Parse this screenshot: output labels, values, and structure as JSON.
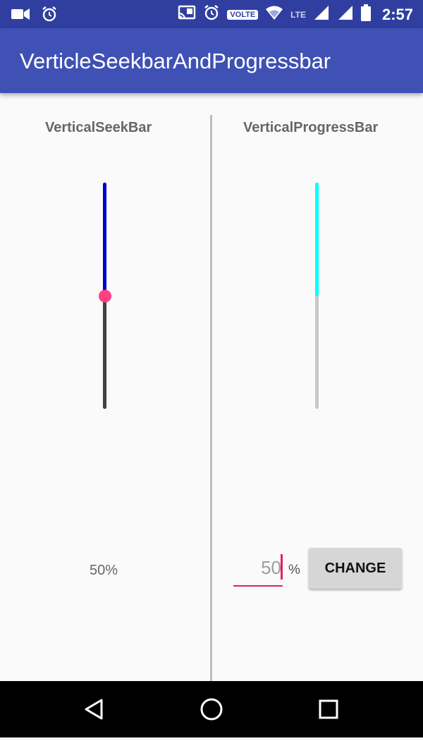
{
  "status_bar": {
    "time": "2:57",
    "volte": "VOLTE",
    "network": "LTE",
    "icons": [
      "video-icon",
      "alarm-icon",
      "cast-icon",
      "alarm-icon",
      "wifi-icon",
      "signal-icon",
      "battery-icon"
    ]
  },
  "app_bar": {
    "title": "VerticleSeekbarAndProgressbar"
  },
  "seekbar_panel": {
    "heading": "VerticalSeekBar",
    "value_percent": 50,
    "value_label": "50%",
    "colors": {
      "filled": "#0000cc",
      "empty": "#424242",
      "thumb": "#ff4081"
    }
  },
  "progressbar_panel": {
    "heading": "VerticalProgressBar",
    "progress_percent": 50,
    "input_value": "50",
    "percent_sign": "%",
    "button_label": "CHANGE",
    "colors": {
      "filled": "#00ffff",
      "empty": "#c8c8c8"
    }
  },
  "nav_bar": {
    "icons": [
      "back-icon",
      "home-icon",
      "recents-icon"
    ]
  },
  "colors": {
    "primary": "#3f51b5",
    "primary_dark": "#303f9f",
    "accent": "#ff4081"
  }
}
